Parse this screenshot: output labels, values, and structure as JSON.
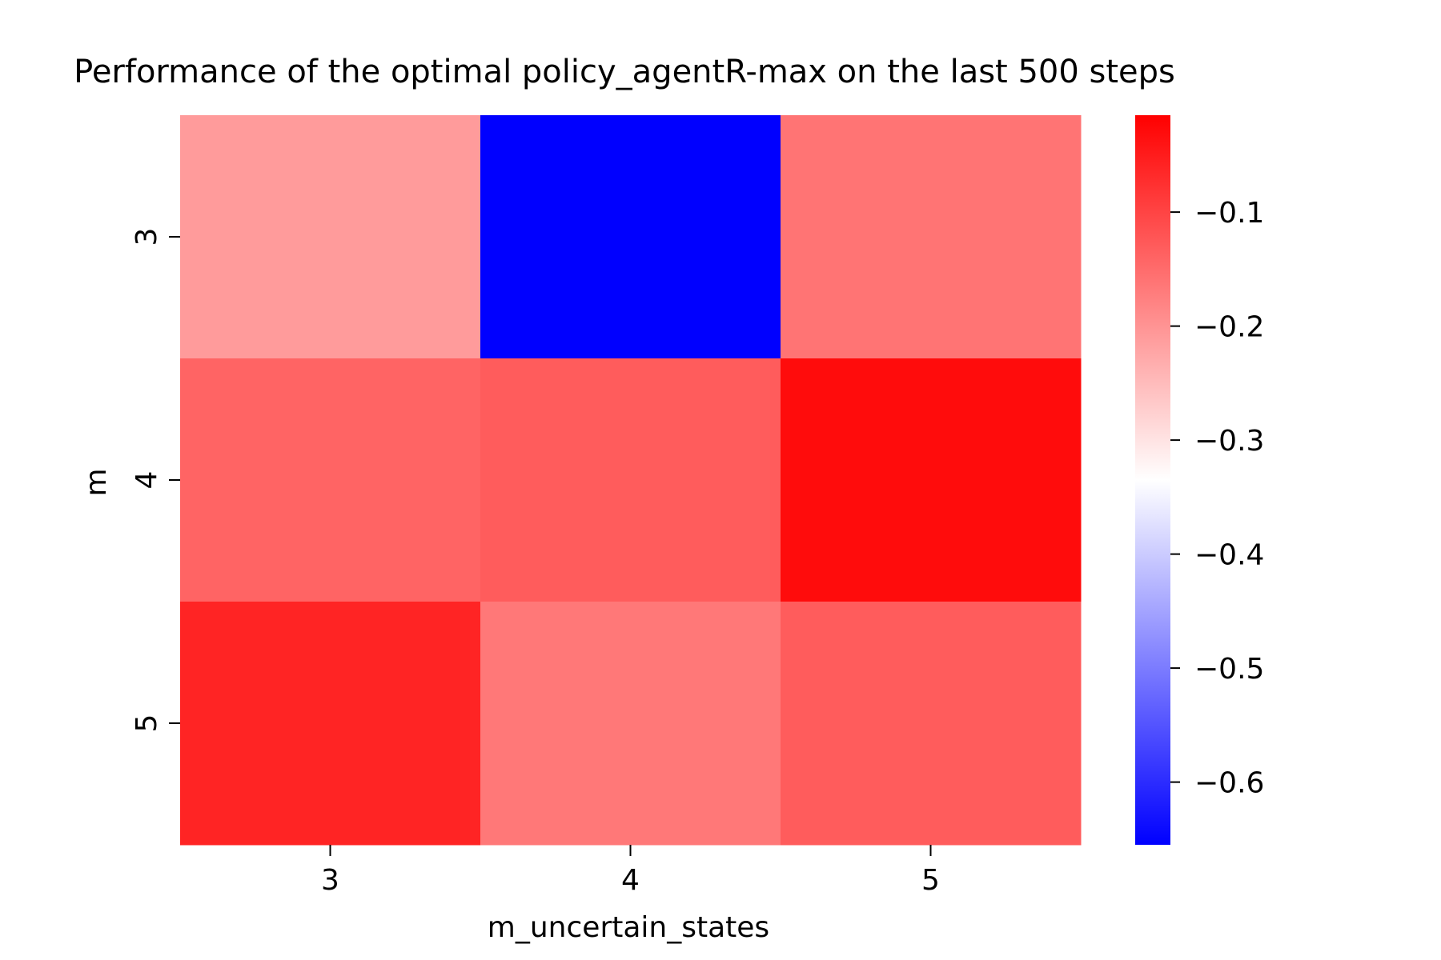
{
  "chart_data": {
    "type": "heatmap",
    "title": "Performance of the optimal policy_agentR-max on the last 500 steps",
    "xlabel": "m_uncertain_states",
    "ylabel": "m",
    "x_categories": [
      "3",
      "4",
      "5"
    ],
    "y_categories": [
      "3",
      "4",
      "5"
    ],
    "values": [
      [
        -0.21,
        -0.655,
        -0.16
      ],
      [
        -0.14,
        -0.13,
        -0.03
      ],
      [
        -0.06,
        -0.165,
        -0.13
      ]
    ],
    "colormap": "bwr",
    "colorbar": {
      "vmin": -0.655,
      "vmax": -0.015,
      "ticks": [
        -0.1,
        -0.2,
        -0.3,
        -0.4,
        -0.5,
        -0.6
      ],
      "tick_labels": [
        "−0.1",
        "−0.2",
        "−0.3",
        "−0.4",
        "−0.5",
        "−0.6"
      ]
    },
    "grid": false,
    "legend": "colorbar-right"
  }
}
